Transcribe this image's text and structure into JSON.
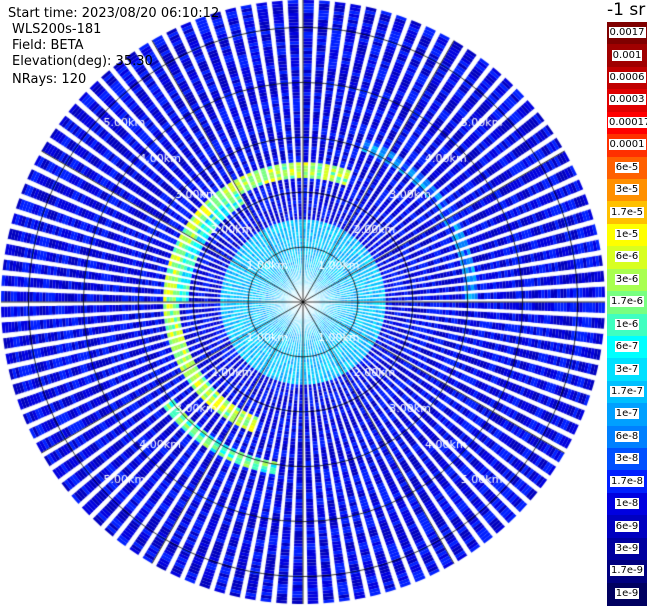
{
  "info": {
    "start_time": "Start time: 2023/08/20 06:10:12",
    "device": "WLS200s-181",
    "field": "Field: BETA",
    "elevation": "Elevation(deg): 35.30",
    "nrays": "NRays: 120"
  },
  "legend": {
    "title": "-1 sr",
    "ticks": [
      "0.0017",
      "0.001",
      "0.0006",
      "0.0003",
      "0.00017",
      "0.0001",
      "6e-5",
      "3e-5",
      "1.7e-5",
      "1e-5",
      "6e-6",
      "3e-6",
      "1.7e-6",
      "1e-6",
      "6e-7",
      "3e-7",
      "1.7e-7",
      "1e-7",
      "6e-8",
      "3e-8",
      "1.7e-8",
      "1e-8",
      "6e-9",
      "3e-9",
      "1.7e-9",
      "1e-9"
    ],
    "colors": [
      "#7f0000",
      "#a00000",
      "#c00000",
      "#e00000",
      "#ff0000",
      "#ff3000",
      "#ff6000",
      "#ff9000",
      "#ffc000",
      "#ffff00",
      "#d8ff20",
      "#a8ff50",
      "#78ff80",
      "#40ffc0",
      "#00ffff",
      "#00e0ff",
      "#00c0ff",
      "#00a0ff",
      "#0080ff",
      "#0050ff",
      "#0020ff",
      "#0000e0",
      "#0000c0",
      "#00009f",
      "#00007f",
      "#000060"
    ]
  },
  "chart_data": {
    "type": "heatmap",
    "projection": "polar-ppi",
    "field": "BETA",
    "elevation_deg": 35.3,
    "nrays": 120,
    "units": "-1 sr",
    "scale": "log",
    "range_rings_km": [
      1.0,
      2.0,
      3.0,
      4.0,
      5.0
    ],
    "ring_labels": [
      "1.00km",
      "2.00km",
      "3.00km",
      "4.00km",
      "5.00km"
    ],
    "max_range_km": 5.5,
    "spokes_deg": [
      0,
      30,
      60,
      90,
      120,
      150,
      180,
      210,
      240,
      270,
      300,
      330
    ],
    "background_level": "1e-8",
    "features": [
      {
        "type": "ring-echo",
        "range_km": 2.4,
        "azimuth_from_deg": 200,
        "azimuth_to_deg": 20,
        "max_level": "1e-5"
      },
      {
        "type": "arc-echo",
        "range_km": 3.05,
        "azimuth_from_deg": 20,
        "azimuth_to_deg": 90,
        "max_level": "1.7e-7"
      },
      {
        "type": "arc-echo",
        "range_km": 3.05,
        "azimuth_from_deg": 190,
        "azimuth_to_deg": 235,
        "max_level": "3e-6"
      },
      {
        "type": "ring-echo",
        "range_km": 2.2,
        "azimuth_from_deg": 270,
        "azimuth_to_deg": 330,
        "max_level": "1.7e-6"
      }
    ]
  }
}
